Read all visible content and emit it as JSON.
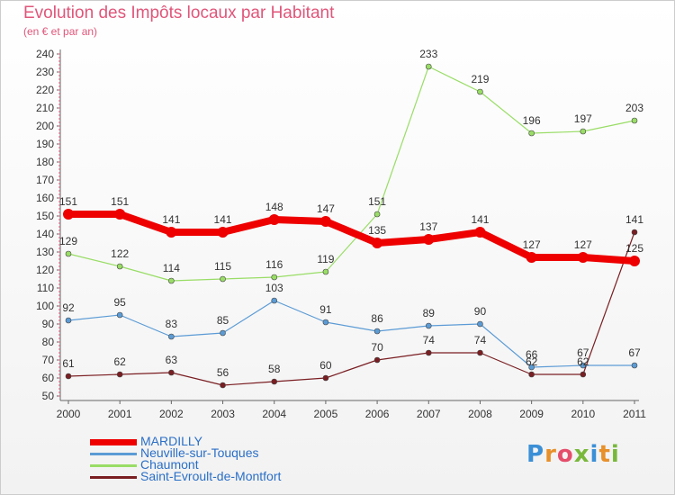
{
  "header": {
    "title": "Evolution des Impôts locaux par Habitant",
    "subtitle": "(en € et par an)"
  },
  "logo": {
    "text": "Proxiti",
    "letter_colors": [
      "#3b8fd6",
      "#e8902a",
      "#e54d6b",
      "#79b83a",
      "#3b8fd6",
      "#e8902a",
      "#79b83a"
    ]
  },
  "chart_data": {
    "type": "line",
    "title": "Evolution des Impôts locaux par Habitant",
    "subtitle": "(en € et par an)",
    "x": [
      "2000",
      "2001",
      "2002",
      "2003",
      "2004",
      "2005",
      "2006",
      "2007",
      "2008",
      "2009",
      "2010",
      "2011"
    ],
    "y_ticks": [
      50,
      60,
      70,
      80,
      90,
      100,
      110,
      120,
      130,
      140,
      150,
      160,
      170,
      180,
      190,
      200,
      210,
      220,
      230,
      240
    ],
    "ylim": [
      50,
      240
    ],
    "grid": false,
    "legend_position": "bottom-left",
    "series": [
      {
        "name": "Saint-Evroult-de-Montfort",
        "color": "#7a1e22",
        "width": 1.2,
        "marker": 3,
        "values": [
          61,
          62,
          63,
          56,
          58,
          60,
          70,
          74,
          74,
          62,
          62,
          141
        ],
        "labels": [
          "61",
          "62",
          "63",
          "56",
          "58",
          "60",
          "70",
          "74",
          "74",
          "62",
          "62",
          "141"
        ]
      },
      {
        "name": "Chaumont",
        "color": "#99dd66",
        "width": 1.2,
        "marker": 3,
        "values": [
          129,
          122,
          114,
          115,
          116,
          119,
          151,
          233,
          219,
          196,
          197,
          203
        ],
        "labels": [
          "129",
          "122",
          "114",
          "115",
          "116",
          "119",
          "151",
          "233",
          "219",
          "196",
          "197",
          "203"
        ]
      },
      {
        "name": "Neuville-sur-Touques",
        "color": "#5b9bd5",
        "width": 1.2,
        "marker": 3,
        "values": [
          92,
          95,
          83,
          85,
          103,
          91,
          86,
          89,
          90,
          66,
          67,
          67
        ],
        "labels": [
          "92",
          "95",
          "83",
          "85",
          "103",
          "91",
          "86",
          "89",
          "90",
          "66",
          "67",
          "67"
        ]
      },
      {
        "name": "MARDILLY",
        "color": "#ee0000",
        "width": 8,
        "marker": 6,
        "values": [
          151,
          151,
          141,
          141,
          148,
          147,
          135,
          137,
          141,
          127,
          127,
          125
        ],
        "labels": [
          "151",
          "151",
          "141",
          "141",
          "148",
          "147",
          "135",
          "137",
          "141",
          "127",
          "127",
          "125"
        ]
      }
    ],
    "legend": [
      {
        "name": "MARDILLY",
        "color": "#ee0000"
      },
      {
        "name": "Neuville-sur-Touques",
        "color": "#5b9bd5"
      },
      {
        "name": "Chaumont",
        "color": "#99dd66"
      },
      {
        "name": "Saint-Evroult-de-Montfort",
        "color": "#7a1e22"
      }
    ]
  }
}
